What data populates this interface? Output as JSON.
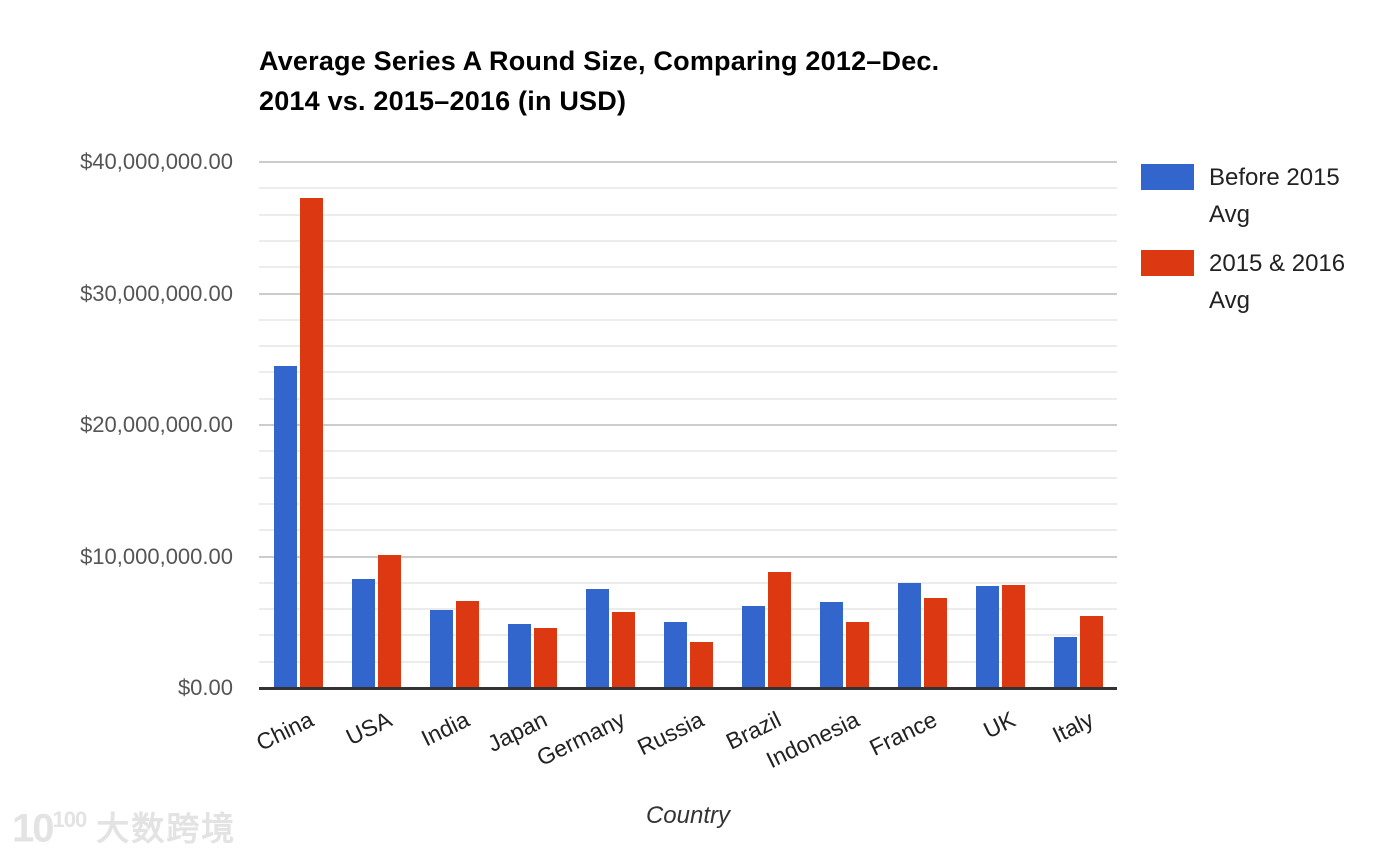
{
  "title": {
    "line1": "Average Series A Round Size, Comparing 2012–Dec.",
    "line2": "2014 vs. 2015–2016 (in USD)"
  },
  "legend": {
    "items": [
      {
        "label_line1": "Before 2015",
        "label_line2": "Avg",
        "color": "#3366CC"
      },
      {
        "label_line1": "2015 & 2016",
        "label_line2": "Avg",
        "color": "#DC3912"
      }
    ]
  },
  "axes": {
    "x_title": "Country",
    "y_tick_labels": [
      "$0.00",
      "$10,000,000.00",
      "$20,000,000.00",
      "$30,000,000.00",
      "$40,000,000.00"
    ],
    "y_tick_values": [
      0,
      10000000,
      20000000,
      30000000,
      40000000
    ]
  },
  "watermark": {
    "logo_main": "10",
    "logo_sup": "100",
    "text": "大数跨境"
  },
  "chart_data": {
    "type": "bar",
    "title": "Average Series A Round Size, Comparing 2012–Dec. 2014 vs. 2015–2016 (in USD)",
    "xlabel": "Country",
    "ylabel": "",
    "ylim": [
      0,
      40000000
    ],
    "y_major_step": 10000000,
    "y_minor_step": 2000000,
    "grid": true,
    "legend_position": "right",
    "categories": [
      "China",
      "USA",
      "India",
      "Japan",
      "Germany",
      "Russia",
      "Brazil",
      "Indonesia",
      "France",
      "UK",
      "Italy"
    ],
    "series": [
      {
        "name": "Before 2015 Avg",
        "color": "#3366CC",
        "values": [
          24500000,
          8300000,
          5950000,
          4850000,
          7500000,
          5050000,
          6200000,
          6550000,
          7950000,
          7750000,
          3900000
        ]
      },
      {
        "name": "2015 & 2016 Avg",
        "color": "#DC3912",
        "values": [
          37250000,
          10150000,
          6650000,
          4550000,
          5750000,
          3500000,
          8800000,
          5000000,
          6850000,
          7800000,
          5450000
        ]
      }
    ]
  }
}
